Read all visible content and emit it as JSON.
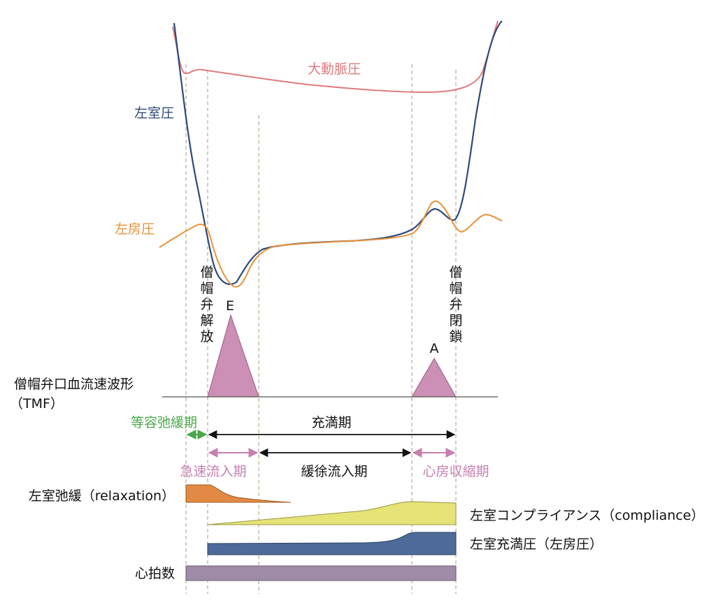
{
  "labels": {
    "aortic_pressure": "大動脈圧",
    "lv_pressure": "左室圧",
    "la_pressure": "左房圧",
    "mitral_open": [
      "僧",
      "帽",
      "弁",
      "解",
      "放"
    ],
    "mitral_close": [
      "僧",
      "帽",
      "弁",
      "閉",
      "鎖"
    ],
    "e_wave": "E",
    "a_wave": "A",
    "tmf_line1": "僧帽弁口血流速波形",
    "tmf_line2": "（TMF）",
    "isovolumic_relaxation": "等容弛緩期",
    "filling_phase": "充満期",
    "rapid_filling": "急速流入期",
    "slow_filling": "緩徐流入期",
    "atrial_contraction": "心房収縮期",
    "relaxation": "左室弛緩（relaxation）",
    "compliance": "左室コンプライアンス（compliance）",
    "filling_pressure": "左室充満圧（左房圧）",
    "heart_rate": "心拍数"
  },
  "colors": {
    "aortic": "#e07a7c",
    "lv": "#2e4a78",
    "la": "#e8923a",
    "green": "#4aa84a",
    "pink": "#c77fb1",
    "tmf_fill": "#cc8fb5",
    "relaxation_fill": "#e08a45",
    "compliance_fill": "#e6e377",
    "filling_fill": "#4e6a98",
    "heart_rate_fill": "#9e8ba6"
  }
}
